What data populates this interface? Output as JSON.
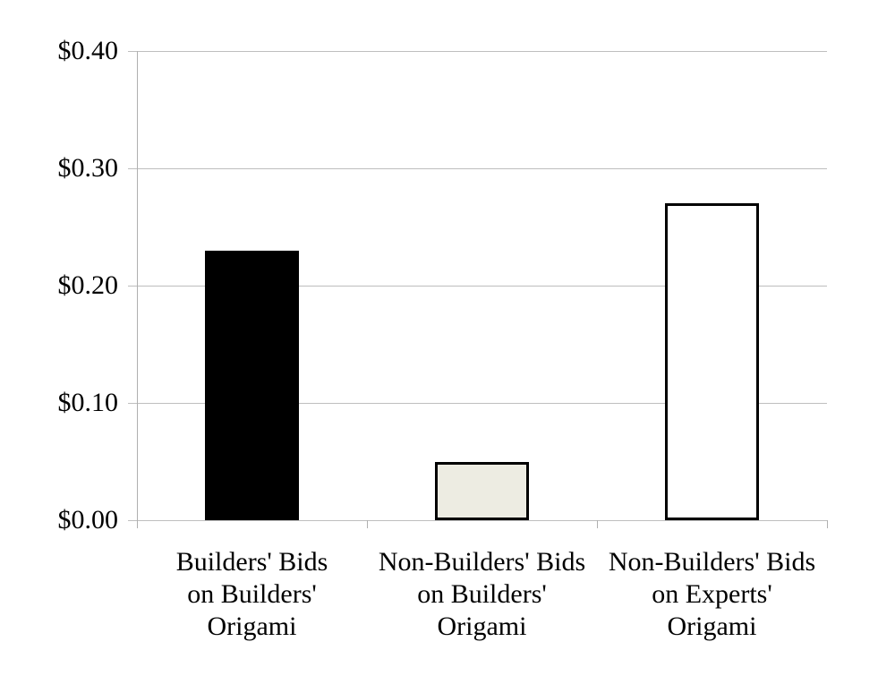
{
  "chart_data": {
    "type": "bar",
    "title": "",
    "xlabel": "",
    "ylabel": "",
    "categories": [
      "Builders' Bids on Builders' Origami",
      "Non-Builders' Bids on Builders' Origami",
      "Non-Builders' Bids on Experts' Origami"
    ],
    "category_lines": [
      [
        "Builders' Bids",
        "on Builders'",
        "Origami"
      ],
      [
        "Non-Builders' Bids",
        "on Builders'",
        "Origami"
      ],
      [
        "Non-Builders' Bids",
        "on Experts'",
        "Origami"
      ]
    ],
    "values": [
      0.23,
      0.05,
      0.27
    ],
    "value_format": "dollars",
    "ylim": [
      0.0,
      0.4
    ],
    "y_ticks": [
      {
        "value": 0.4,
        "label": "$0.40"
      },
      {
        "value": 0.3,
        "label": "$0.30"
      },
      {
        "value": 0.2,
        "label": "$0.20"
      },
      {
        "value": 0.1,
        "label": "$0.10"
      },
      {
        "value": 0.0,
        "label": "$0.00"
      }
    ],
    "grid": true,
    "legend": "none",
    "bar_fills": [
      "#000000",
      "#EDECE2",
      "#FFFFFF"
    ],
    "bar_border_color": "#000000",
    "gridline_color": "#BEBEBE",
    "axis_color": "#B0B0B0",
    "text_color": "#000000"
  }
}
